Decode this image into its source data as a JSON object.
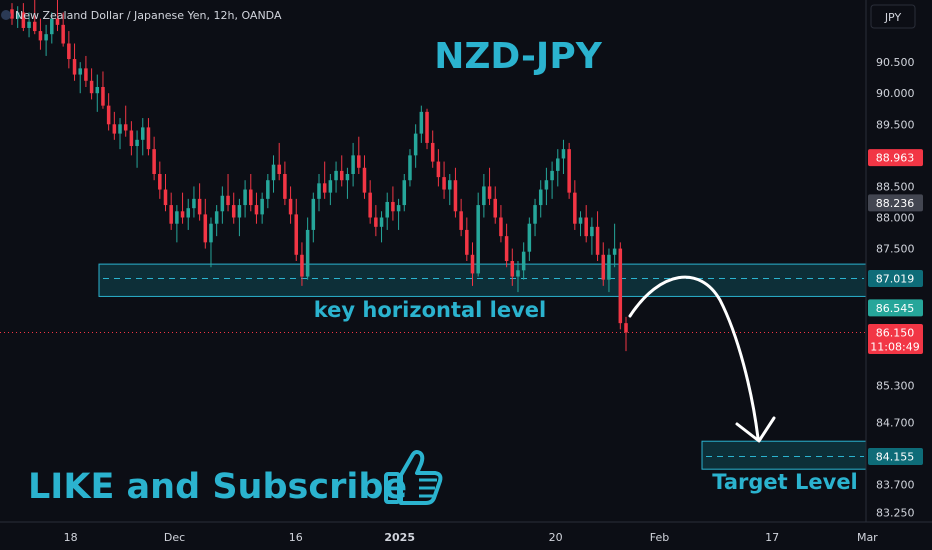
{
  "chart_data": {
    "type": "candlestick",
    "title": "New Zealand Dollar / Japanese Yen, 12h, OANDA",
    "currency": "JPY",
    "headline": "NZD-JPY",
    "annotations": {
      "key_level_label": "key horizontal level",
      "target_label": "Target Level",
      "cta": "LIKE and Subscribe"
    },
    "icons": {
      "cta_icon": "thumbs-up-icon"
    },
    "y_ticks": [
      90.5,
      90.0,
      89.5,
      88.5,
      88.0,
      87.5,
      85.3,
      84.7,
      83.7,
      83.25
    ],
    "y_tick_labels": [
      "90.500",
      "90.000",
      "89.500",
      "88.500",
      "88.000",
      "87.500",
      "85.300",
      "84.700",
      "83.700",
      "83.250"
    ],
    "ylim": [
      83.1,
      91.5
    ],
    "x_ticks": [
      {
        "label": "18",
        "t": 0.07,
        "bold": false
      },
      {
        "label": "Dec",
        "t": 0.19,
        "bold": false
      },
      {
        "label": "16",
        "t": 0.33,
        "bold": false
      },
      {
        "label": "2025",
        "t": 0.45,
        "bold": true
      },
      {
        "label": "20",
        "t": 0.63,
        "bold": false
      },
      {
        "label": "Feb",
        "t": 0.75,
        "bold": false
      },
      {
        "label": "17",
        "t": 0.88,
        "bold": false
      },
      {
        "label": "Mar",
        "t": 0.99,
        "bold": false
      }
    ],
    "price_badges": [
      {
        "label": "88.963",
        "value": 88.963,
        "bg": "#f23645",
        "fg": "#ffffff"
      },
      {
        "label": "88.236",
        "value": 88.236,
        "bg": "#434651",
        "fg": "#ffffff"
      },
      {
        "label": "87.019",
        "value": 87.019,
        "bg": "#0e6c78",
        "fg": "#ffffff"
      },
      {
        "label": "86.545",
        "value": 86.545,
        "bg": "#26a69a",
        "fg": "#ffffff"
      },
      {
        "label": "86.150",
        "value": 86.15,
        "bg": "#f23645",
        "fg": "#ffffff"
      },
      {
        "label": "84.155",
        "value": 84.155,
        "bg": "#0e6c78",
        "fg": "#ffffff"
      }
    ],
    "countdown": "11:08:49",
    "current_price": 86.15,
    "key_zone": {
      "top": 87.25,
      "bottom": 86.73,
      "mid": 87.019
    },
    "target_zone": {
      "top": 84.4,
      "bottom": 83.95,
      "mid": 84.155
    },
    "candle_colors": {
      "up": "#26a69a",
      "down": "#f23645"
    },
    "candles": [
      [
        91.35,
        91.45,
        91.1,
        91.2
      ],
      [
        91.2,
        91.4,
        91.05,
        91.3
      ],
      [
        91.3,
        91.45,
        91.0,
        91.05
      ],
      [
        91.05,
        91.3,
        90.9,
        91.15
      ],
      [
        91.15,
        91.5,
        90.95,
        91.0
      ],
      [
        91.0,
        91.2,
        90.7,
        90.85
      ],
      [
        90.85,
        91.1,
        90.6,
        90.95
      ],
      [
        90.95,
        91.3,
        90.8,
        91.2
      ],
      [
        91.2,
        91.5,
        91.0,
        91.1
      ],
      [
        91.1,
        91.3,
        90.75,
        90.8
      ],
      [
        90.8,
        91.0,
        90.4,
        90.55
      ],
      [
        90.55,
        90.8,
        90.2,
        90.3
      ],
      [
        90.3,
        90.5,
        90.0,
        90.4
      ],
      [
        90.4,
        90.6,
        90.1,
        90.2
      ],
      [
        90.2,
        90.4,
        89.9,
        90.0
      ],
      [
        90.0,
        90.3,
        89.7,
        90.1
      ],
      [
        90.1,
        90.35,
        89.75,
        89.8
      ],
      [
        89.8,
        90.0,
        89.4,
        89.5
      ],
      [
        89.5,
        89.7,
        89.25,
        89.35
      ],
      [
        89.35,
        89.6,
        89.1,
        89.5
      ],
      [
        89.5,
        89.8,
        89.3,
        89.4
      ],
      [
        89.4,
        89.55,
        89.0,
        89.15
      ],
      [
        89.15,
        89.4,
        88.8,
        89.25
      ],
      [
        89.25,
        89.6,
        89.0,
        89.45
      ],
      [
        89.45,
        89.6,
        89.0,
        89.1
      ],
      [
        89.1,
        89.3,
        88.6,
        88.7
      ],
      [
        88.7,
        88.9,
        88.3,
        88.45
      ],
      [
        88.45,
        88.7,
        88.1,
        88.2
      ],
      [
        88.2,
        88.4,
        87.8,
        87.9
      ],
      [
        87.9,
        88.2,
        87.6,
        88.1
      ],
      [
        88.1,
        88.4,
        87.9,
        88.0
      ],
      [
        88.0,
        88.3,
        87.8,
        88.15
      ],
      [
        88.15,
        88.5,
        88.0,
        88.3
      ],
      [
        88.3,
        88.55,
        87.95,
        88.05
      ],
      [
        88.05,
        88.3,
        87.5,
        87.6
      ],
      [
        87.6,
        88.0,
        87.2,
        87.9
      ],
      [
        87.9,
        88.2,
        87.7,
        88.1
      ],
      [
        88.1,
        88.5,
        87.9,
        88.35
      ],
      [
        88.35,
        88.7,
        88.1,
        88.2
      ],
      [
        88.2,
        88.4,
        87.9,
        88.0
      ],
      [
        88.0,
        88.3,
        87.7,
        88.2
      ],
      [
        88.2,
        88.6,
        88.0,
        88.45
      ],
      [
        88.45,
        88.7,
        88.1,
        88.2
      ],
      [
        88.2,
        88.4,
        87.9,
        88.05
      ],
      [
        88.05,
        88.4,
        87.9,
        88.3
      ],
      [
        88.3,
        88.7,
        88.15,
        88.6
      ],
      [
        88.6,
        89.0,
        88.4,
        88.85
      ],
      [
        88.85,
        89.2,
        88.6,
        88.7
      ],
      [
        88.7,
        88.9,
        88.2,
        88.3
      ],
      [
        88.3,
        88.5,
        87.9,
        88.05
      ],
      [
        88.05,
        88.3,
        87.3,
        87.4
      ],
      [
        87.4,
        87.6,
        86.9,
        87.05
      ],
      [
        87.05,
        88.0,
        87.0,
        87.8
      ],
      [
        87.8,
        88.4,
        87.6,
        88.3
      ],
      [
        88.3,
        88.7,
        88.1,
        88.55
      ],
      [
        88.55,
        88.9,
        88.3,
        88.4
      ],
      [
        88.4,
        88.7,
        88.2,
        88.6
      ],
      [
        88.6,
        88.9,
        88.4,
        88.75
      ],
      [
        88.75,
        89.0,
        88.5,
        88.6
      ],
      [
        88.6,
        88.8,
        88.3,
        88.7
      ],
      [
        88.7,
        89.2,
        88.5,
        89.0
      ],
      [
        89.0,
        89.3,
        88.7,
        88.8
      ],
      [
        88.8,
        89.0,
        88.3,
        88.4
      ],
      [
        88.4,
        88.6,
        87.9,
        88.0
      ],
      [
        88.0,
        88.2,
        87.7,
        87.85
      ],
      [
        87.85,
        88.1,
        87.6,
        88.0
      ],
      [
        88.0,
        88.4,
        87.8,
        88.25
      ],
      [
        88.25,
        88.5,
        87.95,
        88.1
      ],
      [
        88.1,
        88.3,
        87.8,
        88.2
      ],
      [
        88.2,
        88.7,
        88.1,
        88.6
      ],
      [
        88.6,
        89.1,
        88.5,
        89.0
      ],
      [
        89.0,
        89.5,
        88.8,
        89.35
      ],
      [
        89.35,
        89.8,
        89.2,
        89.7
      ],
      [
        89.7,
        89.75,
        89.1,
        89.2
      ],
      [
        89.2,
        89.4,
        88.8,
        88.9
      ],
      [
        88.9,
        89.1,
        88.5,
        88.65
      ],
      [
        88.65,
        88.9,
        88.3,
        88.45
      ],
      [
        88.45,
        88.7,
        88.2,
        88.6
      ],
      [
        88.6,
        88.8,
        88.0,
        88.1
      ],
      [
        88.1,
        88.3,
        87.7,
        87.8
      ],
      [
        87.8,
        88.0,
        87.3,
        87.4
      ],
      [
        87.4,
        87.6,
        86.9,
        87.1
      ],
      [
        87.1,
        88.4,
        87.05,
        88.2
      ],
      [
        88.2,
        88.7,
        88.0,
        88.5
      ],
      [
        88.5,
        88.8,
        88.2,
        88.3
      ],
      [
        88.3,
        88.5,
        87.9,
        88.0
      ],
      [
        88.0,
        88.2,
        87.6,
        87.7
      ],
      [
        87.7,
        87.9,
        87.2,
        87.3
      ],
      [
        87.3,
        87.5,
        86.9,
        87.05
      ],
      [
        87.05,
        87.3,
        86.8,
        87.15
      ],
      [
        87.15,
        87.6,
        87.0,
        87.45
      ],
      [
        87.45,
        88.0,
        87.3,
        87.9
      ],
      [
        87.9,
        88.3,
        87.7,
        88.2
      ],
      [
        88.2,
        88.6,
        88.0,
        88.45
      ],
      [
        88.45,
        88.8,
        88.2,
        88.6
      ],
      [
        88.6,
        88.9,
        88.3,
        88.75
      ],
      [
        88.75,
        89.1,
        88.5,
        88.95
      ],
      [
        88.95,
        89.25,
        88.7,
        89.1
      ],
      [
        89.1,
        89.2,
        88.3,
        88.4
      ],
      [
        88.4,
        88.6,
        87.8,
        87.9
      ],
      [
        87.9,
        88.1,
        87.7,
        88.0
      ],
      [
        88.0,
        88.2,
        87.6,
        87.7
      ],
      [
        87.7,
        88.0,
        87.4,
        87.85
      ],
      [
        87.85,
        88.1,
        87.3,
        87.4
      ],
      [
        87.4,
        87.6,
        86.9,
        87.0
      ],
      [
        87.0,
        87.5,
        86.8,
        87.4
      ],
      [
        87.4,
        87.9,
        87.2,
        87.5
      ],
      [
        87.5,
        87.6,
        86.2,
        86.3
      ],
      [
        86.3,
        86.4,
        85.85,
        86.15
      ]
    ]
  }
}
